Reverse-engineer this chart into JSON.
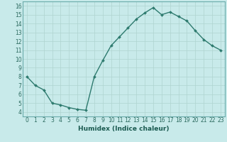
{
  "x": [
    0,
    1,
    2,
    3,
    4,
    5,
    6,
    7,
    8,
    9,
    10,
    11,
    12,
    13,
    14,
    15,
    16,
    17,
    18,
    19,
    20,
    21,
    22,
    23
  ],
  "y": [
    8,
    7,
    6.5,
    5,
    4.8,
    4.5,
    4.3,
    4.2,
    8,
    9.8,
    11.5,
    12.5,
    13.5,
    14.5,
    15.2,
    15.8,
    15,
    15.3,
    14.8,
    14.3,
    13.2,
    12.2,
    11.5,
    11
  ],
  "line_color": "#2d7a6e",
  "marker": "D",
  "markersize": 2.0,
  "linewidth": 1.0,
  "bg_color": "#c8eaea",
  "grid_color": "#afd4d0",
  "xlabel": "Humidex (Indice chaleur)",
  "xlim": [
    -0.5,
    23.5
  ],
  "ylim": [
    3.5,
    16.5
  ],
  "yticks": [
    4,
    5,
    6,
    7,
    8,
    9,
    10,
    11,
    12,
    13,
    14,
    15,
    16
  ],
  "xticks": [
    0,
    1,
    2,
    3,
    4,
    5,
    6,
    7,
    8,
    9,
    10,
    11,
    12,
    13,
    14,
    15,
    16,
    17,
    18,
    19,
    20,
    21,
    22,
    23
  ],
  "xlabel_fontsize": 6.5,
  "tick_fontsize": 5.5,
  "tick_color": "#2d6b60",
  "spine_color": "#6aabaa",
  "label_color": "#1a5a50"
}
